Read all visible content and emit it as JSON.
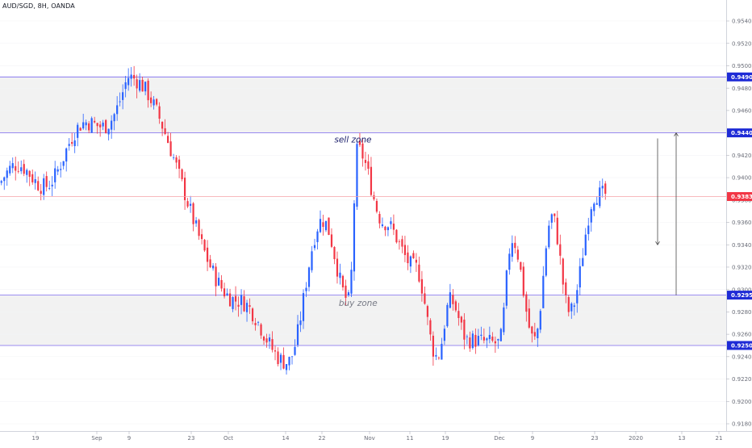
{
  "title": "AUD/SGD, 8H, OANDA",
  "colors": {
    "background": "#ffffff",
    "up": "#2962ff",
    "down": "#f23645",
    "zone_fill": "#f2f2f2",
    "zone_line": "#7b68ee",
    "price_line": "#f6a3a8",
    "badge_blue": "#1e2bd6",
    "badge_red": "#f23645",
    "axis_text": "#6a6d78",
    "annotation": "#1b1f6b",
    "annotation_buy": "#787b86",
    "arrow": "#4a4a4a"
  },
  "chart_data": {
    "type": "candlestick",
    "symbol": "AUD/SGD",
    "timeframe": "8H",
    "source": "OANDA",
    "ylim": [
      0.917,
      0.956
    ],
    "y_ticks": [
      "0.91800",
      "0.92000",
      "0.92200",
      "0.92400",
      "0.92600",
      "0.92800",
      "0.93000",
      "0.93200",
      "0.93400",
      "0.93600",
      "0.93800",
      "0.94000",
      "0.94200",
      "0.94600",
      "0.94800",
      "0.95000",
      "0.95200",
      "0.95400"
    ],
    "x_ticks": [
      "19",
      "Sep",
      "9",
      "23",
      "Oct",
      "14",
      "22",
      "Nov",
      "11",
      "19",
      "Dec",
      "9",
      "23",
      "2020",
      "13",
      "21"
    ],
    "price_badges": [
      {
        "label": "0.94900",
        "value": 0.949,
        "style": "blue"
      },
      {
        "label": "0.94400",
        "value": 0.944,
        "style": "blue"
      },
      {
        "label": "0.93831",
        "value": 0.93831,
        "style": "red"
      },
      {
        "label": "0.92950",
        "value": 0.9295,
        "style": "blue"
      },
      {
        "label": "0.92500",
        "value": 0.925,
        "style": "blue"
      }
    ],
    "zones": [
      {
        "name": "sell zone",
        "top": 0.949,
        "bottom": 0.944
      },
      {
        "name": "buy zone",
        "top": 0.9295,
        "bottom": 0.925
      }
    ],
    "annotations": [
      {
        "text": "sell zone",
        "x": "Oct 29",
        "y": 0.944
      },
      {
        "text": "buy zone",
        "x": "Oct 30",
        "y": 0.9294
      }
    ],
    "current_price": 0.93831,
    "projection_arrows": [
      {
        "direction": "down",
        "from": 0.9435,
        "to": 0.934
      },
      {
        "direction": "up",
        "from": 0.9295,
        "to": 0.944
      }
    ],
    "anchors": [
      {
        "x": "Sep 9",
        "y": 0.949
      },
      {
        "x": "Oct 4",
        "y": 0.929
      },
      {
        "x": "Oct 15",
        "y": 0.9235
      },
      {
        "x": "Oct 23",
        "y": 0.9362
      },
      {
        "x": "Oct 29",
        "y": 0.929
      },
      {
        "x": "Oct 31",
        "y": 0.9425
      },
      {
        "x": "Nov 6",
        "y": 0.936
      },
      {
        "x": "Nov 13",
        "y": 0.932
      },
      {
        "x": "Nov 18",
        "y": 0.924
      },
      {
        "x": "Nov 21",
        "y": 0.929
      },
      {
        "x": "Nov 25",
        "y": 0.9255
      },
      {
        "x": "Dec 2",
        "y": 0.9252
      },
      {
        "x": "Dec 5",
        "y": 0.9345
      },
      {
        "x": "Dec 10",
        "y": 0.9255
      },
      {
        "x": "Dec 14",
        "y": 0.9365
      },
      {
        "x": "Dec 18",
        "y": 0.928
      },
      {
        "x": "Dec 24",
        "y": 0.9385
      }
    ]
  }
}
